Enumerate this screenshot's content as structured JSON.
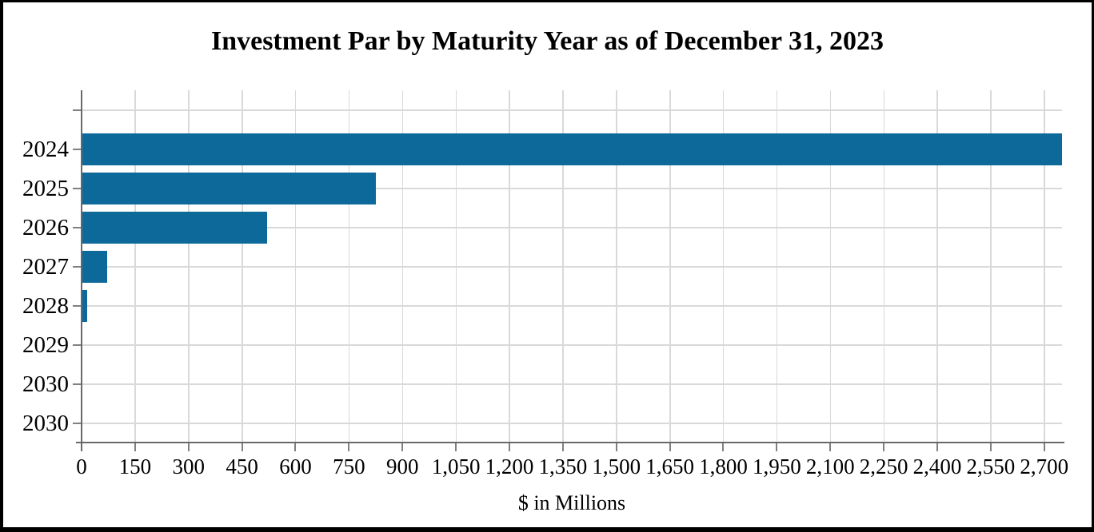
{
  "chart_data": {
    "type": "bar",
    "orientation": "horizontal",
    "title": "Investment Par by Maturity Year as of December 31, 2023",
    "xlabel": "$ in Millions",
    "ylabel": "",
    "categories": [
      "",
      "2024",
      "2025",
      "2026",
      "2027",
      "2028",
      "2029",
      "2030",
      "2030"
    ],
    "values": [
      0,
      2750,
      825,
      520,
      72,
      15,
      0,
      0,
      0
    ],
    "series": [
      {
        "name": "Investment Par",
        "values": [
          0,
          2750,
          825,
          520,
          72,
          15,
          0,
          0,
          0
        ]
      }
    ],
    "xlim": [
      0,
      2750
    ],
    "x_ticks": [
      0,
      150,
      300,
      450,
      600,
      750,
      900,
      1050,
      1200,
      1350,
      1500,
      1650,
      1800,
      1950,
      2100,
      2250,
      2400,
      2550,
      2700
    ],
    "x_tick_labels": [
      "0",
      "150",
      "300",
      "450",
      "600",
      "750",
      "900",
      "1,050",
      "1,200",
      "1,350",
      "1,500",
      "1,650",
      "1,800",
      "1,950",
      "2,100",
      "2,250",
      "2,400",
      "2,550",
      "2,700"
    ],
    "grid": true,
    "legend": false,
    "colors": {
      "bar": "#0e699b",
      "gridline": "#d9d9d9",
      "axis_line": "#696969",
      "tick": "#808080",
      "text": "#000000",
      "background": "#ffffff",
      "border": "#000000"
    }
  }
}
